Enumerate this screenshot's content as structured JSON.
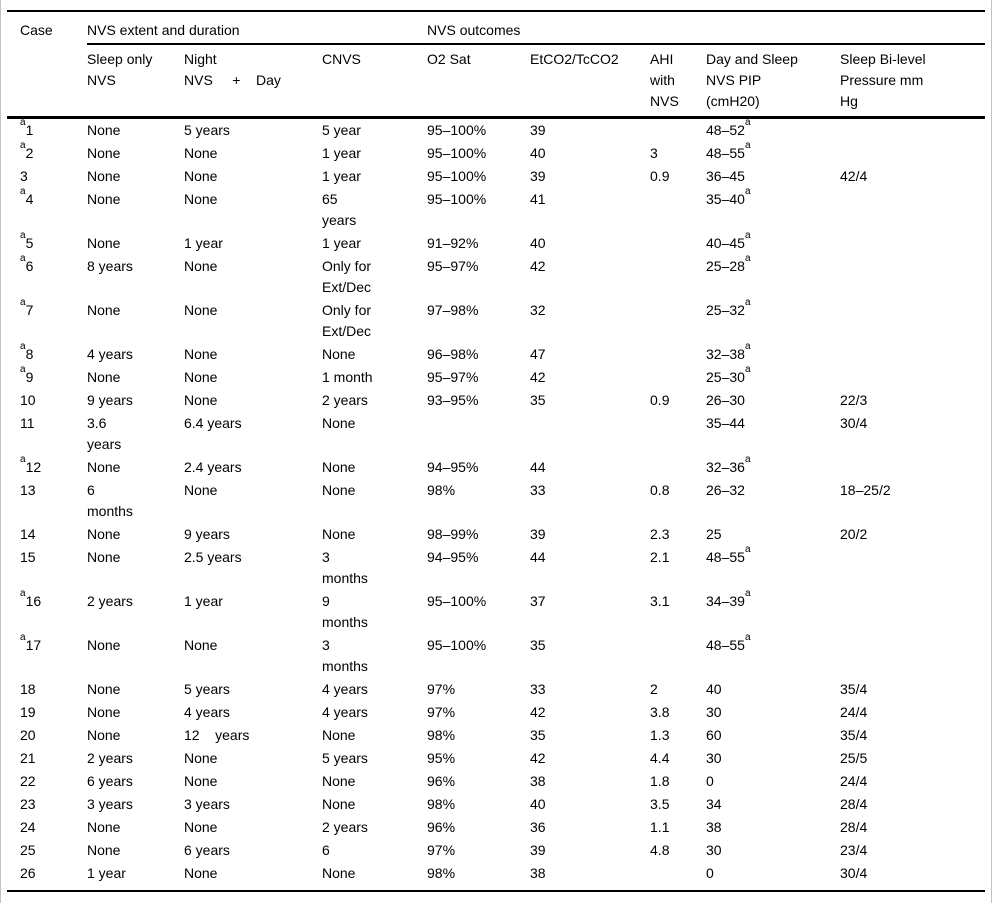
{
  "table": {
    "header": {
      "case_label": "Case",
      "groups": [
        {
          "label": "NVS extent and duration",
          "colspan": 3
        },
        {
          "label": "NVS outcomes",
          "colspan": 5
        }
      ],
      "subheaders": [
        "Sleep only\nNVS",
        "Night\nNVS     +    Day",
        "CNVS",
        "O2 Sat",
        "EtCO2/TcCO2",
        "AHI\nwith\nNVS",
        "Day and Sleep\nNVS PIP\n(cmH20)",
        "Sleep Bi-level\nPressure mm\nHg"
      ]
    },
    "footnote_marker": "a",
    "rows": [
      {
        "case_sup": "a",
        "case": "1",
        "sleep_only": "None",
        "night_day": "5 years",
        "cnvs": "5 year",
        "o2_sat": "95–100%",
        "etco2": "39",
        "ahi": "",
        "pip": "48–52",
        "pip_sup": "a",
        "bilevel": ""
      },
      {
        "case_sup": "a",
        "case": "2",
        "sleep_only": "None",
        "night_day": "None",
        "cnvs": "1 year",
        "o2_sat": "95–100%",
        "etco2": "40",
        "ahi": "3",
        "pip": "48–55",
        "pip_sup": "a",
        "bilevel": ""
      },
      {
        "case_sup": "",
        "case": "3",
        "sleep_only": "None",
        "night_day": "None",
        "cnvs": "1 year",
        "o2_sat": "95–100%",
        "etco2": "39",
        "ahi": "0.9",
        "pip": "36–45",
        "pip_sup": "",
        "bilevel": "42/4"
      },
      {
        "case_sup": "a",
        "case": "4",
        "sleep_only": "None",
        "night_day": "None",
        "cnvs": "65\nyears",
        "o2_sat": "95–100%",
        "etco2": "41",
        "ahi": "",
        "pip": "35–40",
        "pip_sup": "a",
        "bilevel": ""
      },
      {
        "case_sup": "a",
        "case": "5",
        "sleep_only": "None",
        "night_day": "1 year",
        "cnvs": "1 year",
        "o2_sat": "91–92%",
        "etco2": "40",
        "ahi": "",
        "pip": "40–45",
        "pip_sup": "a",
        "bilevel": ""
      },
      {
        "case_sup": "a",
        "case": "6",
        "sleep_only": "8 years",
        "night_day": "None",
        "cnvs": "Only for\nExt/Dec",
        "o2_sat": "95–97%",
        "etco2": "42",
        "ahi": "",
        "pip": "25–28",
        "pip_sup": "a",
        "bilevel": ""
      },
      {
        "case_sup": "a",
        "case": "7",
        "sleep_only": "None",
        "night_day": "None",
        "cnvs": "Only for\nExt/Dec",
        "o2_sat": "97–98%",
        "etco2": "32",
        "ahi": "",
        "pip": "25–32",
        "pip_sup": "a",
        "bilevel": ""
      },
      {
        "case_sup": "a",
        "case": "8",
        "sleep_only": "4 years",
        "night_day": "None",
        "cnvs": "None",
        "o2_sat": "96–98%",
        "etco2": "47",
        "ahi": "",
        "pip": "32–38",
        "pip_sup": "a",
        "bilevel": ""
      },
      {
        "case_sup": "a",
        "case": "9",
        "sleep_only": "None",
        "night_day": "None",
        "cnvs": "1 month",
        "o2_sat": "95–97%",
        "etco2": "42",
        "ahi": "",
        "pip": "25–30",
        "pip_sup": "a",
        "bilevel": ""
      },
      {
        "case_sup": "",
        "case": "10",
        "sleep_only": "9 years",
        "night_day": "None",
        "cnvs": "2 years",
        "o2_sat": "93–95%",
        "etco2": "35",
        "ahi": "0.9",
        "pip": "26–30",
        "pip_sup": "",
        "bilevel": "22/3"
      },
      {
        "case_sup": "",
        "case": "11",
        "sleep_only": "3.6\nyears",
        "night_day": "6.4 years",
        "cnvs": "None",
        "o2_sat": "",
        "etco2": "",
        "ahi": "",
        "pip": "35–44",
        "pip_sup": "",
        "bilevel": "30/4"
      },
      {
        "case_sup": "a",
        "case": "12",
        "sleep_only": "None",
        "night_day": "2.4 years",
        "cnvs": "None",
        "o2_sat": "94–95%",
        "etco2": "44",
        "ahi": "",
        "pip": "32–36",
        "pip_sup": "a",
        "bilevel": ""
      },
      {
        "case_sup": "",
        "case": "13",
        "sleep_only": "6\nmonths",
        "night_day": "None",
        "cnvs": "None",
        "o2_sat": "98%",
        "etco2": "33",
        "ahi": "0.8",
        "pip": "26–32",
        "pip_sup": "",
        "bilevel": "18–25/2"
      },
      {
        "case_sup": "",
        "case": "14",
        "sleep_only": "None",
        "night_day": "9 years",
        "cnvs": "None",
        "o2_sat": "98–99%",
        "etco2": "39",
        "ahi": "2.3",
        "pip": "25",
        "pip_sup": "",
        "bilevel": "20/2"
      },
      {
        "case_sup": "",
        "case": "15",
        "sleep_only": "None",
        "night_day": "2.5 years",
        "cnvs": "3\nmonths",
        "o2_sat": "94–95%",
        "etco2": "44",
        "ahi": "2.1",
        "pip": "48–55",
        "pip_sup": "a",
        "bilevel": ""
      },
      {
        "case_sup": "a",
        "case": "16",
        "sleep_only": "2 years",
        "night_day": "1 year",
        "cnvs": "9\nmonths",
        "o2_sat": "95–100%",
        "etco2": "37",
        "ahi": "3.1",
        "pip": "34–39",
        "pip_sup": "a",
        "bilevel": ""
      },
      {
        "case_sup": "a",
        "case": "17",
        "sleep_only": "None",
        "night_day": "None",
        "cnvs": "3\nmonths",
        "o2_sat": "95–100%",
        "etco2": "35",
        "ahi": "",
        "pip": "48–55",
        "pip_sup": "a",
        "bilevel": ""
      },
      {
        "case_sup": "",
        "case": "18",
        "sleep_only": "None",
        "night_day": "5 years",
        "cnvs": "4 years",
        "o2_sat": "97%",
        "etco2": "33",
        "ahi": "2",
        "pip": "40",
        "pip_sup": "",
        "bilevel": "35/4"
      },
      {
        "case_sup": "",
        "case": "19",
        "sleep_only": "None",
        "night_day": "4 years",
        "cnvs": "4 years",
        "o2_sat": "97%",
        "etco2": "42",
        "ahi": "3.8",
        "pip": "30",
        "pip_sup": "",
        "bilevel": "24/4"
      },
      {
        "case_sup": "",
        "case": "20",
        "sleep_only": "None",
        "night_day": "12    years",
        "cnvs": "None",
        "o2_sat": "98%",
        "etco2": "35",
        "ahi": "1.3",
        "pip": "60",
        "pip_sup": "",
        "bilevel": "35/4"
      },
      {
        "case_sup": "",
        "case": "21",
        "sleep_only": "2 years",
        "night_day": "None",
        "cnvs": "5 years",
        "o2_sat": "95%",
        "etco2": "42",
        "ahi": "4.4",
        "pip": "30",
        "pip_sup": "",
        "bilevel": "25/5"
      },
      {
        "case_sup": "",
        "case": "22",
        "sleep_only": "6 years",
        "night_day": "None",
        "cnvs": "None",
        "o2_sat": "96%",
        "etco2": "38",
        "ahi": "1.8",
        "pip": "0",
        "pip_sup": "",
        "bilevel": "24/4"
      },
      {
        "case_sup": "",
        "case": "23",
        "sleep_only": "3 years",
        "night_day": "3 years",
        "cnvs": "None",
        "o2_sat": "98%",
        "etco2": "40",
        "ahi": "3.5",
        "pip": "34",
        "pip_sup": "",
        "bilevel": "28/4"
      },
      {
        "case_sup": "",
        "case": "24",
        "sleep_only": "None",
        "night_day": "None",
        "cnvs": "2 years",
        "o2_sat": "96%",
        "etco2": "36",
        "ahi": "1.1",
        "pip": "38",
        "pip_sup": "",
        "bilevel": "28/4"
      },
      {
        "case_sup": "",
        "case": "25",
        "sleep_only": "None",
        "night_day": "6 years",
        "cnvs": "6",
        "o2_sat": "97%",
        "etco2": "39",
        "ahi": "4.8",
        "pip": "30",
        "pip_sup": "",
        "bilevel": "23/4"
      },
      {
        "case_sup": "",
        "case": "26",
        "sleep_only": "1 year",
        "night_day": "None",
        "cnvs": "None",
        "o2_sat": "98%",
        "etco2": "38",
        "ahi": "",
        "pip": "0",
        "pip_sup": "",
        "bilevel": "30/4"
      }
    ]
  }
}
